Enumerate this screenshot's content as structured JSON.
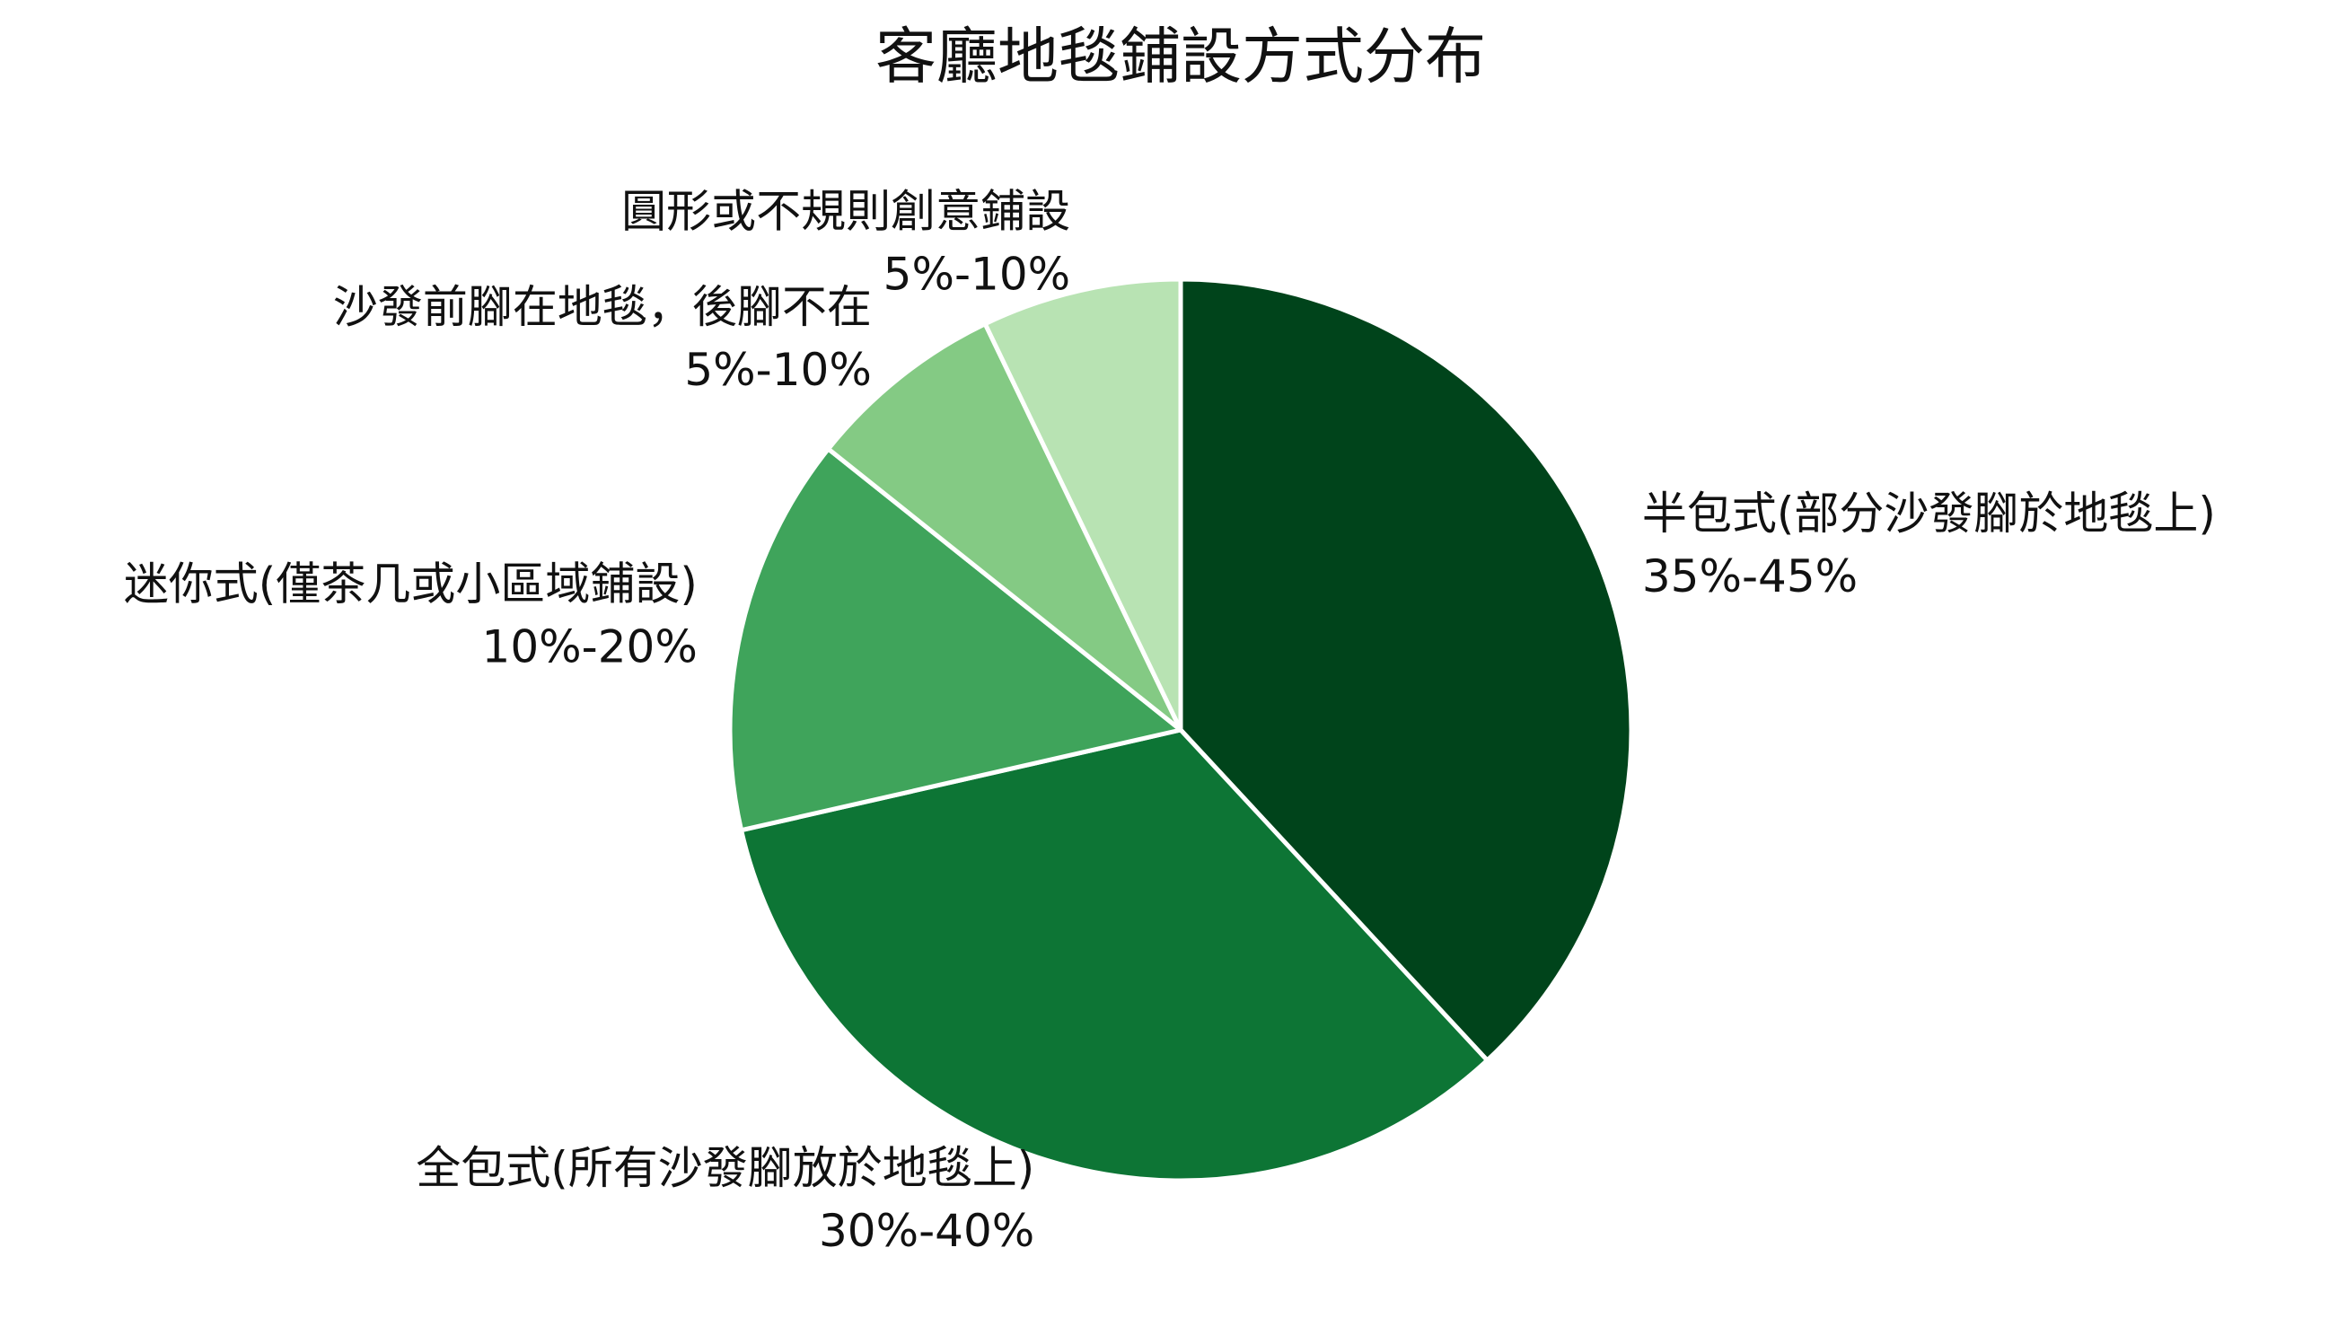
{
  "chart_data": {
    "type": "pie",
    "title": "客廳地毯鋪設方式分布",
    "categories": [
      "半包式(部分沙發腳於地毯上)",
      "全包式(所有沙發腳放於地毯上)",
      "迷你式(僅茶几或小區域鋪設)",
      "沙發前腳在地毯，後腳不在",
      "圓形或不規則創意鋪設"
    ],
    "values": [
      40,
      35,
      15,
      7.5,
      7.5
    ],
    "value_labels": [
      "35%-45%",
      "30%-40%",
      "10%-20%",
      "5%-10%",
      "5%-10%"
    ],
    "colors": [
      "#00441b",
      "#0d7535",
      "#3fa45b",
      "#84ca84",
      "#b8e3b3"
    ]
  }
}
